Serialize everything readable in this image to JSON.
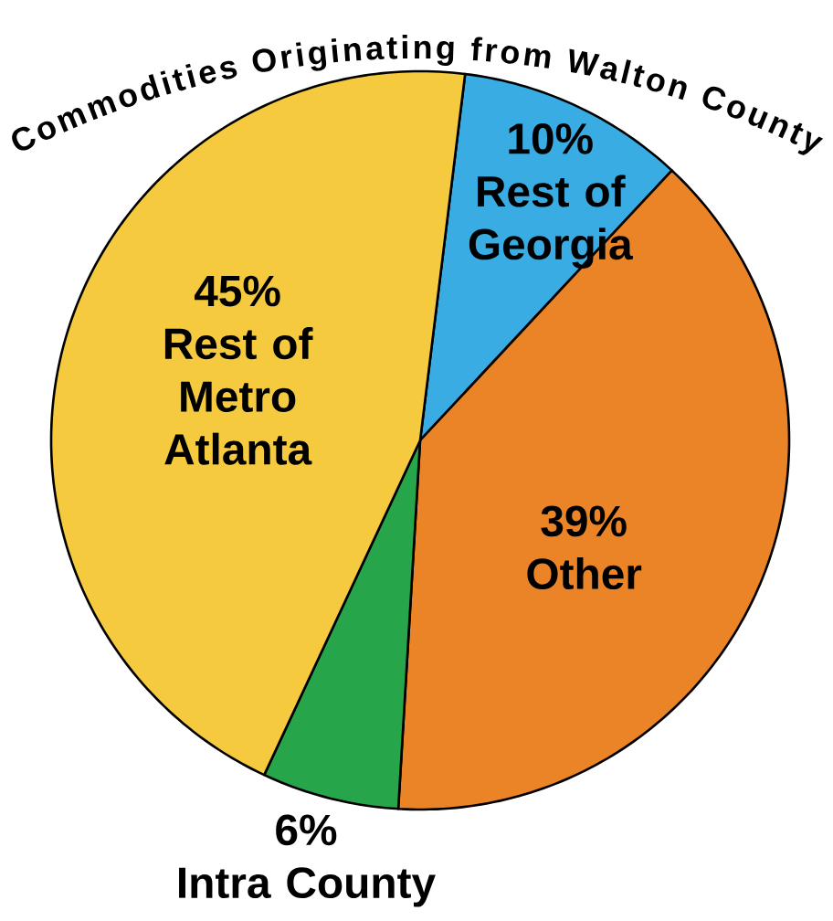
{
  "chart_data": {
    "type": "pie",
    "title": "Commodities Originating from Walton County",
    "categories": [
      "Rest of Georgia",
      "Other",
      "Intra County",
      "Rest of Metro Atlanta"
    ],
    "values": [
      10,
      39,
      6,
      45
    ],
    "colors": [
      "#39ade3",
      "#eb8426",
      "#27a54a",
      "#f5ca3e"
    ],
    "value_labels": [
      "10%",
      "39%",
      "6%",
      "45%"
    ]
  }
}
